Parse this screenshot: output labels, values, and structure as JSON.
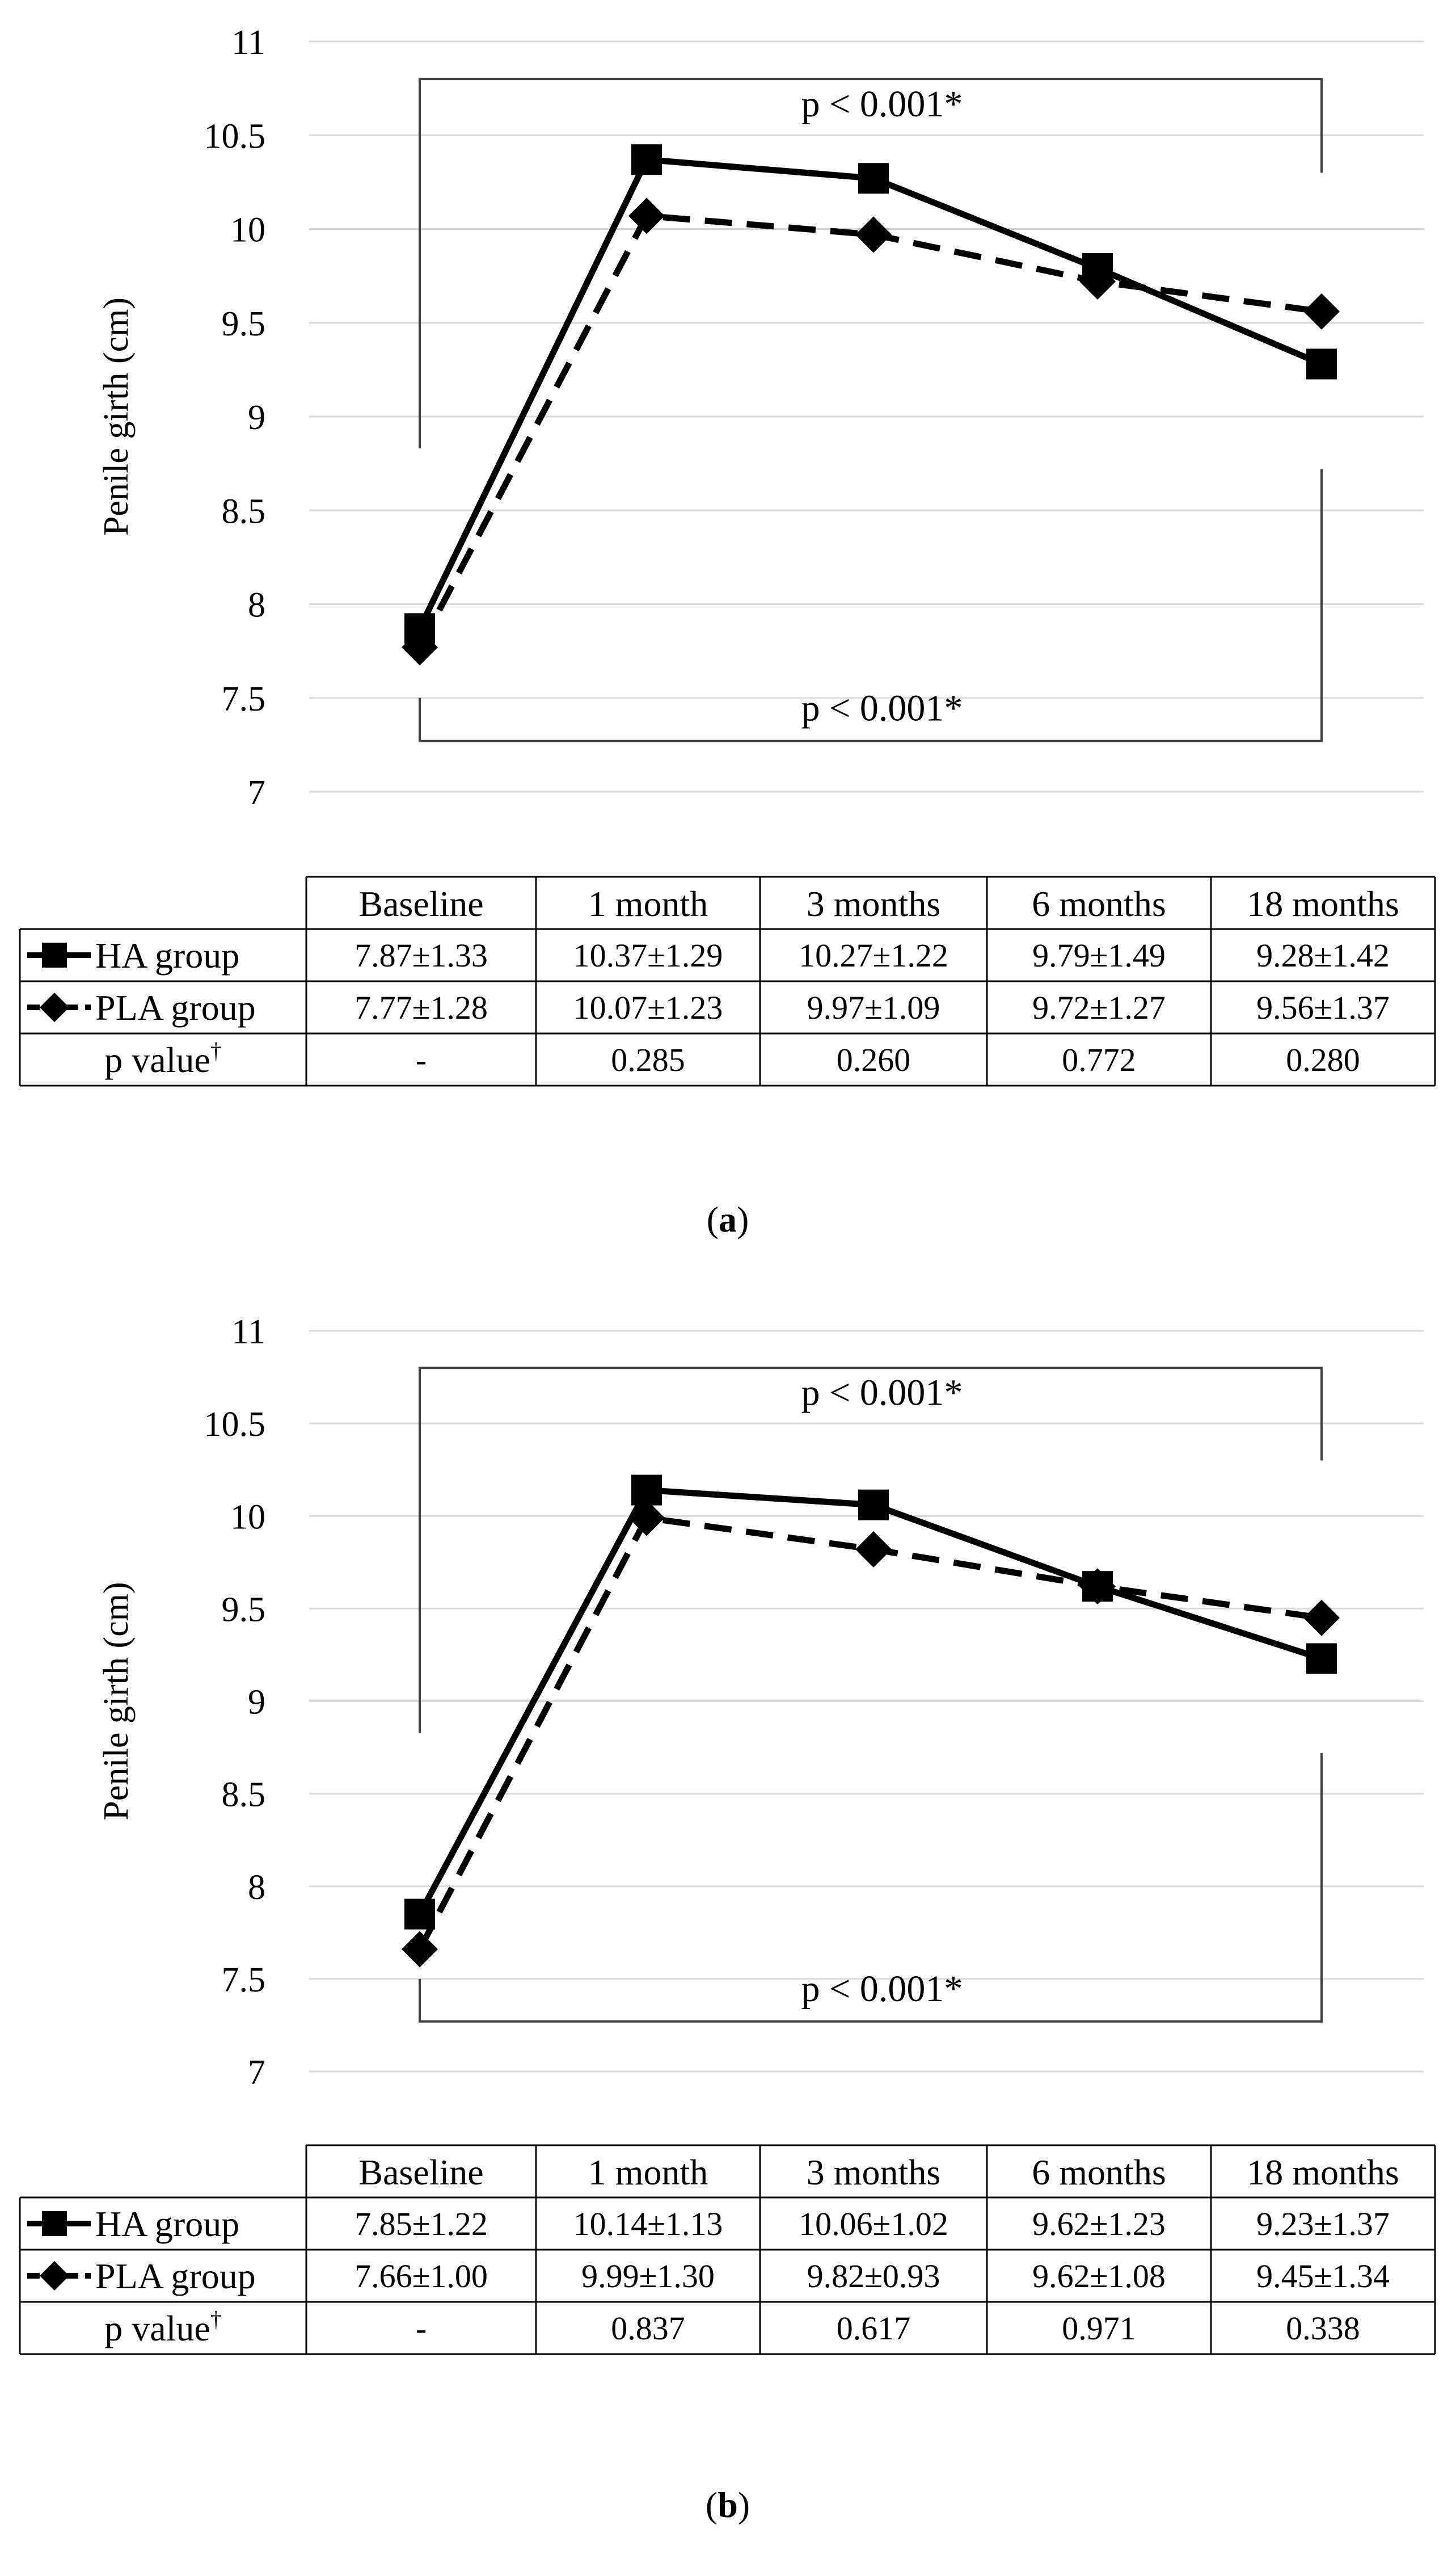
{
  "chart_data": [
    {
      "id": "a",
      "type": "line",
      "caption_letter": "a",
      "ylabel": "Penile girth (cm)",
      "ylim": [
        7,
        11
      ],
      "yticks": [
        "7",
        "7.5",
        "8",
        "8.5",
        "9",
        "9.5",
        "10",
        "10.5",
        "11"
      ],
      "grid": true,
      "categories": [
        "Baseline",
        "1 month",
        "3 months",
        "6 months",
        "18 months"
      ],
      "series": [
        {
          "name": "HA group",
          "row_label": "HA    group",
          "marker": "square",
          "line_style": "solid",
          "values": [
            7.87,
            10.37,
            10.27,
            9.79,
            9.28
          ],
          "table": [
            "7.87±1.33",
            "10.37±1.29",
            "10.27±1.22",
            "9.79±1.49",
            "9.28±1.42"
          ]
        },
        {
          "name": "PLA group",
          "row_label": "PLA group",
          "marker": "diamond",
          "line_style": "dashed",
          "values": [
            7.77,
            10.07,
            9.97,
            9.72,
            9.56
          ],
          "table": [
            "7.77±1.28",
            "10.07±1.23",
            "9.97±1.09",
            "9.72±1.27",
            "9.56±1.37"
          ]
        }
      ],
      "p_row": {
        "label": "p value",
        "dagger": "†",
        "values": [
          "-",
          "0.285",
          "0.260",
          "0.772",
          "0.280"
        ]
      },
      "annotations": {
        "top": "p < 0.001*",
        "bottom": "p < 0.001*"
      }
    },
    {
      "id": "b",
      "type": "line",
      "caption_letter": "b",
      "ylabel": "Penile girth (cm)",
      "ylim": [
        7,
        11
      ],
      "yticks": [
        "7",
        "7.5",
        "8",
        "8.5",
        "9",
        "9.5",
        "10",
        "10.5",
        "11"
      ],
      "grid": true,
      "categories": [
        "Baseline",
        "1 month",
        "3 months",
        "6 months",
        "18 months"
      ],
      "series": [
        {
          "name": "HA group",
          "row_label": "HA    group",
          "marker": "square",
          "line_style": "solid",
          "values": [
            7.85,
            10.14,
            10.06,
            9.62,
            9.23
          ],
          "table": [
            "7.85±1.22",
            "10.14±1.13",
            "10.06±1.02",
            "9.62±1.23",
            "9.23±1.37"
          ]
        },
        {
          "name": "PLA group",
          "row_label": "PLA group",
          "marker": "diamond",
          "line_style": "dashed",
          "values": [
            7.66,
            9.99,
            9.82,
            9.62,
            9.45
          ],
          "table": [
            "7.66±1.00",
            "9.99±1.30",
            "9.82±0.93",
            "9.62±1.08",
            "9.45±1.34"
          ]
        }
      ],
      "p_row": {
        "label": "p value",
        "dagger": "†",
        "values": [
          "-",
          "0.837",
          "0.617",
          "0.971",
          "0.338"
        ]
      },
      "annotations": {
        "top": "p < 0.001*",
        "bottom": "p < 0.001*"
      }
    }
  ]
}
